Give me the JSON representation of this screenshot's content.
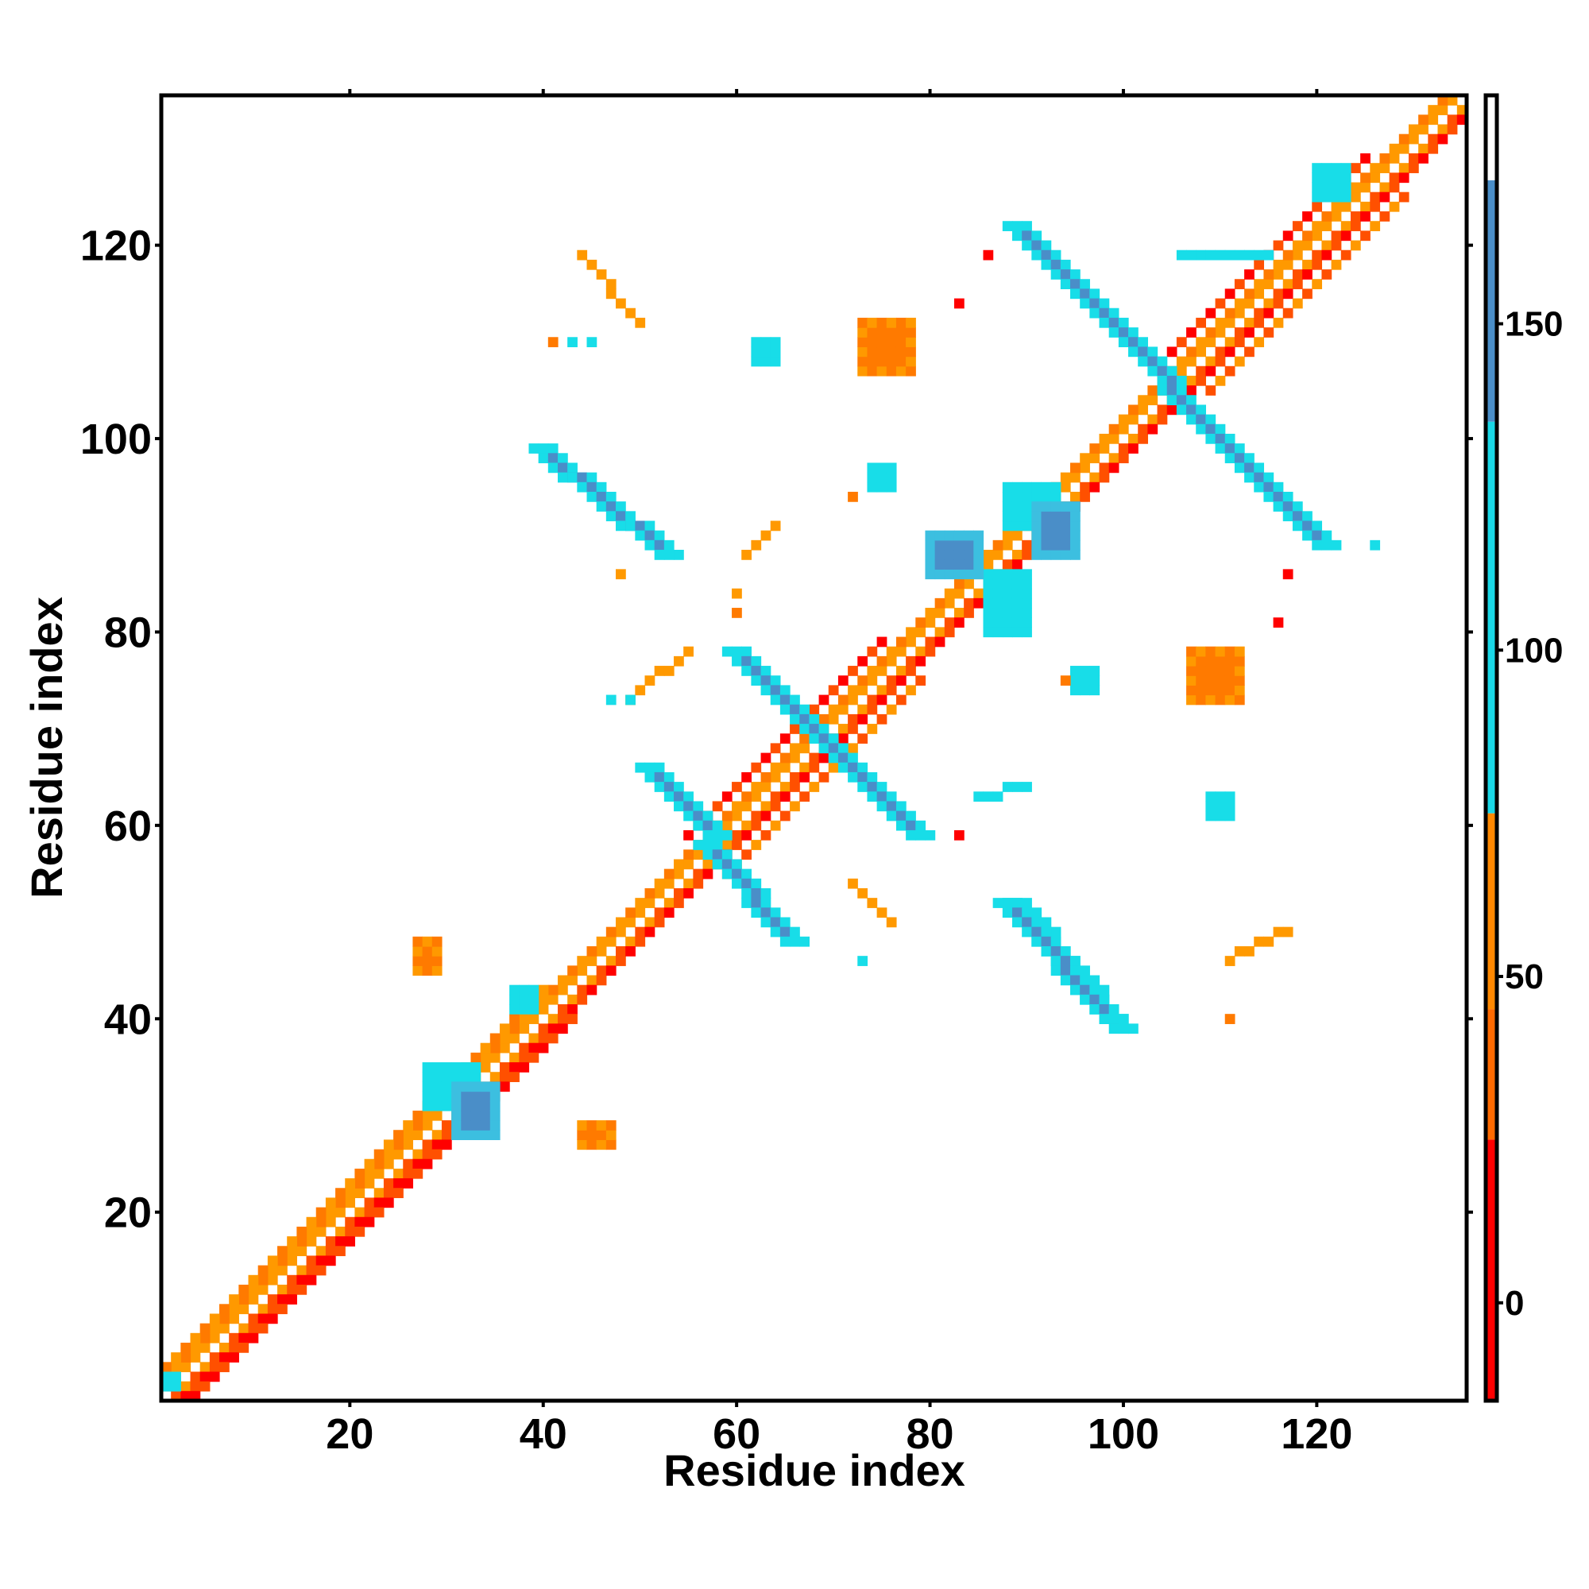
{
  "chart_data": {
    "type": "heatmap",
    "title": "",
    "xlabel": "Residue index",
    "ylabel": "Residue index",
    "xlim": [
      1,
      135
    ],
    "ylim": [
      1,
      135
    ],
    "x_ticks": [
      20,
      40,
      60,
      80,
      100,
      120
    ],
    "y_ticks": [
      20,
      40,
      60,
      80,
      100,
      120
    ],
    "colorbar": {
      "range": [
        -15,
        185
      ],
      "ticks": [
        0,
        50,
        100,
        150
      ],
      "bands": [
        {
          "from": -15,
          "to": 25,
          "color": "#ff0000"
        },
        {
          "from": 25,
          "to": 45,
          "color": "#ff6a00"
        },
        {
          "from": 45,
          "to": 75,
          "color": "#ff8800"
        },
        {
          "from": 75,
          "to": 135,
          "color": "#19d7e6"
        },
        {
          "from": 135,
          "to": 172,
          "color": "#4a8ec8"
        },
        {
          "from": 172,
          "to": 185,
          "color": "#ffffff"
        }
      ]
    },
    "colors": {
      "red": "#ff0000",
      "red_orange": "#ff5000",
      "orange": "#ff7a00",
      "amber": "#ff9900",
      "cyan": "#18dde8",
      "sky": "#3cbfe0",
      "steel": "#4a8ec8"
    },
    "cells": [
      {
        "i": 1,
        "j": 135,
        "x": [
          1,
          134
        ],
        "y": [
          2,
          135
        ],
        "color": "amber"
      },
      {
        "i": 2,
        "j": 135,
        "x": [
          2,
          135
        ],
        "y": [
          1,
          134
        ],
        "color": "red_orange"
      },
      {
        "i": 1,
        "j": 133,
        "x": [
          1,
          133
        ],
        "y": [
          3,
          135
        ],
        "color": "orange"
      },
      {
        "i": 3,
        "j": 135,
        "x": [
          3,
          135
        ],
        "y": [
          1,
          133
        ],
        "color": "red"
      },
      {
        "i": 1,
        "j": 40,
        "x": [
          1,
          40
        ],
        "y": [
          4,
          43
        ],
        "color": "orange"
      },
      {
        "i": 4,
        "j": 43,
        "x": [
          4,
          43
        ],
        "y": [
          1,
          40
        ],
        "color": "red"
      },
      {
        "i": 55,
        "j": 75,
        "x": [
          55,
          75
        ],
        "y": [
          59,
          79
        ],
        "color": "red"
      },
      {
        "i": 59,
        "j": 79,
        "x": [
          59,
          79
        ],
        "y": [
          55,
          75
        ],
        "color": "red_orange"
      },
      {
        "i": 105,
        "j": 125,
        "x": [
          105,
          125
        ],
        "y": [
          109,
          129
        ],
        "color": "red"
      },
      {
        "i": 109,
        "j": 129,
        "x": [
          109,
          129
        ],
        "y": [
          105,
          125
        ],
        "color": "red_orange"
      }
    ],
    "blocks": [
      {
        "x": 1,
        "y": 2,
        "w": 2,
        "h": 2,
        "color": "cyan"
      },
      {
        "x": 28,
        "y": 31,
        "w": 6,
        "h": 5,
        "color": "cyan"
      },
      {
        "x": 31,
        "y": 28,
        "w": 5,
        "h": 6,
        "color": "sky"
      },
      {
        "x": 37,
        "y": 41,
        "w": 3,
        "h": 3,
        "color": "cyan"
      },
      {
        "x": 86,
        "y": 80,
        "w": 5,
        "h": 7,
        "color": "cyan"
      },
      {
        "x": 80,
        "y": 86,
        "w": 6,
        "h": 5,
        "color": "sky"
      },
      {
        "x": 88,
        "y": 91,
        "w": 6,
        "h": 5,
        "color": "cyan"
      },
      {
        "x": 91,
        "y": 88,
        "w": 5,
        "h": 6,
        "color": "sky"
      },
      {
        "x": 120,
        "y": 125,
        "w": 4,
        "h": 4,
        "color": "cyan"
      },
      {
        "x": 27,
        "y": 45,
        "w": 3,
        "h": 4,
        "color": "orange"
      },
      {
        "x": 44,
        "y": 27,
        "w": 4,
        "h": 3,
        "color": "orange"
      },
      {
        "x": 73,
        "y": 107,
        "w": 6,
        "h": 6,
        "color": "orange"
      },
      {
        "x": 107,
        "y": 73,
        "w": 6,
        "h": 6,
        "color": "orange"
      },
      {
        "x": 62,
        "y": 108,
        "w": 3,
        "h": 3,
        "color": "cyan"
      },
      {
        "x": 109,
        "y": 61,
        "w": 3,
        "h": 3,
        "color": "cyan"
      },
      {
        "x": 74,
        "y": 95,
        "w": 3,
        "h": 3,
        "color": "cyan"
      },
      {
        "x": 95,
        "y": 74,
        "w": 3,
        "h": 3,
        "color": "cyan"
      }
    ],
    "strands": [
      {
        "from": [
          39,
          99
        ],
        "to": [
          52,
          88
        ],
        "width": 3,
        "color": "steel",
        "edge": "cyan"
      },
      {
        "from": [
          99,
          39
        ],
        "to": [
          88,
          52
        ],
        "width": 3,
        "color": "steel",
        "edge": "cyan"
      },
      {
        "from": [
          56,
          58
        ],
        "to": [
          65,
          48
        ],
        "width": 3,
        "color": "steel",
        "edge": "cyan"
      },
      {
        "from": [
          50,
          66
        ],
        "to": [
          57,
          59
        ],
        "width": 3,
        "color": "steel",
        "edge": "cyan"
      },
      {
        "from": [
          59,
          78
        ],
        "to": [
          78,
          59
        ],
        "width": 3,
        "color": "steel",
        "edge": "cyan"
      },
      {
        "from": [
          88,
          122
        ],
        "to": [
          120,
          89
        ],
        "width": 3,
        "color": "steel",
        "edge": "cyan"
      },
      {
        "from": [
          87,
          52
        ],
        "to": [
          98,
          40
        ],
        "width": 3,
        "color": "steel",
        "edge": "cyan"
      },
      {
        "from": [
          44,
          119
        ],
        "to": [
          50,
          112
        ],
        "width": 1,
        "color": "red_orange",
        "edge": "amber"
      },
      {
        "from": [
          111,
          46
        ],
        "to": [
          117,
          49
        ],
        "width": 1,
        "color": "red_orange",
        "edge": "amber"
      },
      {
        "from": [
          61,
          88
        ],
        "to": [
          64,
          91
        ],
        "width": 1,
        "color": "red",
        "edge": "amber"
      },
      {
        "from": [
          72,
          54
        ],
        "to": [
          76,
          50
        ],
        "width": 1,
        "color": "red",
        "edge": "amber"
      },
      {
        "from": [
          85,
          63
        ],
        "to": [
          90,
          64
        ],
        "width": 1,
        "color": "red",
        "edge": "cyan"
      },
      {
        "from": [
          49,
          73
        ],
        "to": [
          55,
          78
        ],
        "width": 1,
        "color": "red",
        "edge": "amber"
      },
      {
        "from": [
          106,
          119
        ],
        "to": [
          115,
          119
        ],
        "width": 1,
        "color": "cyan",
        "edge": "cyan"
      }
    ],
    "dots": [
      {
        "x": 41,
        "y": 110,
        "color": "orange"
      },
      {
        "x": 83,
        "y": 114,
        "color": "red"
      },
      {
        "x": 86,
        "y": 119,
        "color": "red"
      },
      {
        "x": 72,
        "y": 94,
        "color": "orange"
      },
      {
        "x": 48,
        "y": 86,
        "color": "amber"
      },
      {
        "x": 60,
        "y": 82,
        "color": "orange"
      },
      {
        "x": 60,
        "y": 84,
        "color": "amber"
      },
      {
        "x": 94,
        "y": 75,
        "color": "orange"
      },
      {
        "x": 111,
        "y": 40,
        "color": "orange"
      },
      {
        "x": 73,
        "y": 46,
        "color": "cyan"
      },
      {
        "x": 83,
        "y": 59,
        "color": "red"
      },
      {
        "x": 117,
        "y": 86,
        "color": "red"
      },
      {
        "x": 116,
        "y": 81,
        "color": "red"
      },
      {
        "x": 126,
        "y": 89,
        "color": "cyan"
      },
      {
        "x": 47,
        "y": 73,
        "color": "cyan"
      },
      {
        "x": 49,
        "y": 73,
        "color": "cyan"
      },
      {
        "x": 43,
        "y": 110,
        "color": "cyan"
      },
      {
        "x": 45,
        "y": 110,
        "color": "cyan"
      }
    ]
  }
}
